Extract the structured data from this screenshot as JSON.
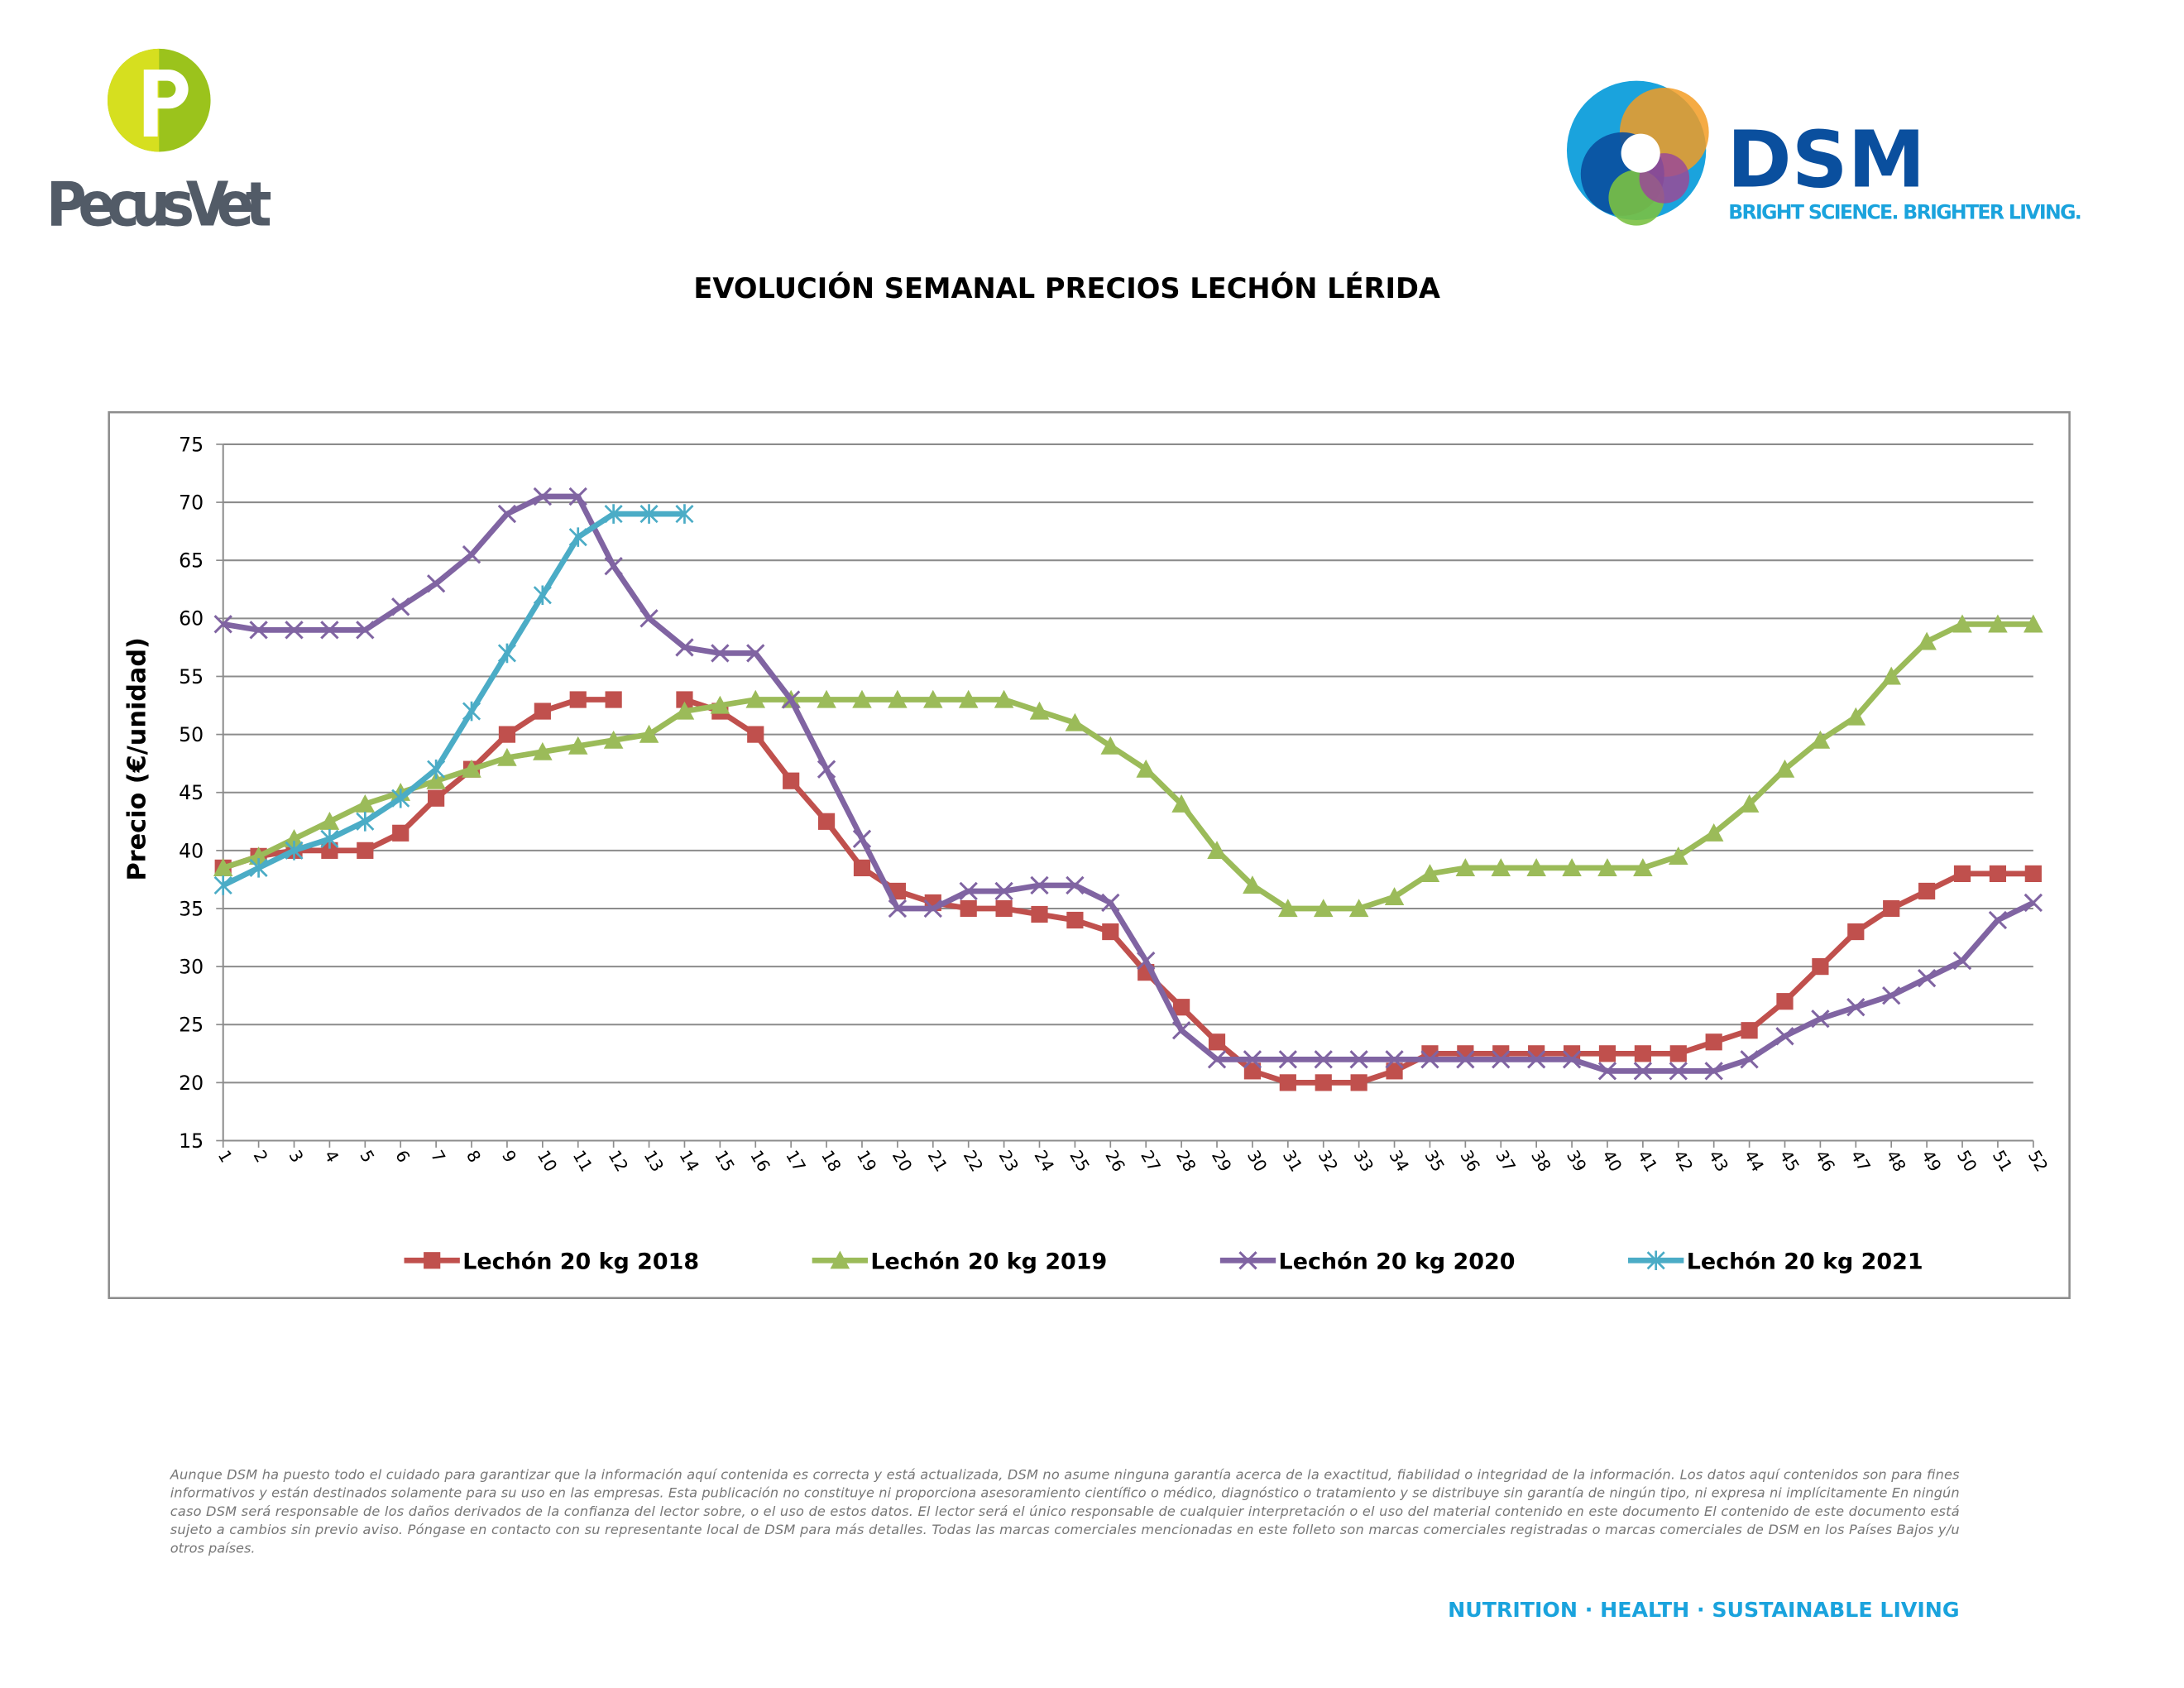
{
  "header": {
    "left_logo": "PecusVet",
    "right_logo": "DSM",
    "tagline": "BRIGHT SCIENCE. BRIGHTER LIVING."
  },
  "chart_data": {
    "type": "line",
    "title": "EVOLUCIÓN SEMANAL PRECIOS LECHÓN LÉRIDA",
    "ylabel": "Precio (€/unidad)",
    "categories": [
      "1",
      "2",
      "3",
      "4",
      "5",
      "6",
      "7",
      "8",
      "9",
      "10",
      "11",
      "12",
      "13",
      "14",
      "15",
      "16",
      "17",
      "18",
      "19",
      "20",
      "21",
      "22",
      "23",
      "24",
      "25",
      "26",
      "27",
      "28",
      "29",
      "30",
      "31",
      "32",
      "33",
      "34",
      "35",
      "36",
      "37",
      "38",
      "39",
      "40",
      "41",
      "42",
      "43",
      "44",
      "45",
      "46",
      "47",
      "48",
      "49",
      "50",
      "51",
      "52"
    ],
    "ylim": [
      15,
      75
    ],
    "yticks": [
      15,
      20,
      25,
      30,
      35,
      40,
      45,
      50,
      55,
      60,
      65,
      70,
      75
    ],
    "grid": true,
    "legend": "bottom",
    "series": [
      {
        "name": "Lechón 20 kg 2018",
        "color": "#c0504d",
        "marker": "square",
        "values": [
          38.5,
          39.5,
          40,
          40,
          40,
          41.5,
          44.5,
          47,
          50,
          52,
          53,
          53,
          null,
          53,
          52,
          50,
          46,
          42.5,
          38.5,
          36.5,
          35.5,
          35,
          35,
          34.5,
          34,
          33,
          29.5,
          26.5,
          23.5,
          21,
          20,
          20,
          20,
          21,
          22.5,
          22.5,
          22.5,
          22.5,
          22.5,
          22.5,
          22.5,
          22.5,
          23.5,
          24.5,
          27,
          30,
          33,
          35,
          36.5,
          38,
          38,
          38
        ]
      },
      {
        "name": "Lechón 20 kg 2019",
        "color": "#9bbb59",
        "marker": "triangle",
        "values": [
          38.5,
          39.5,
          41,
          42.5,
          44,
          45,
          46,
          47,
          48,
          48.5,
          49,
          49.5,
          50,
          52,
          52.5,
          53,
          53,
          53,
          53,
          53,
          53,
          53,
          53,
          52,
          51,
          49,
          47,
          44,
          40,
          37,
          35,
          35,
          35,
          36,
          38,
          38.5,
          38.5,
          38.5,
          38.5,
          38.5,
          38.5,
          39.5,
          41.5,
          44,
          47,
          49.5,
          51.5,
          55,
          58,
          59.5,
          59.5,
          59.5
        ]
      },
      {
        "name": "Lechón 20 kg 2020",
        "color": "#8064a2",
        "marker": "x",
        "values": [
          59.5,
          59,
          59,
          59,
          59,
          61,
          63,
          65.5,
          69,
          70.5,
          70.5,
          64.5,
          60,
          57.5,
          57,
          57,
          53,
          47,
          41,
          35,
          35,
          36.5,
          36.5,
          37,
          37,
          35.5,
          30.5,
          24.5,
          22,
          22,
          22,
          22,
          22,
          22,
          22,
          22,
          22,
          22,
          22,
          21,
          21,
          21,
          21,
          22,
          24,
          25.5,
          26.5,
          27.5,
          29,
          30.5,
          34,
          35.5
        ]
      },
      {
        "name": "Lechón 20 kg 2021",
        "color": "#4bacc6",
        "marker": "asterisk",
        "values": [
          37,
          38.5,
          40,
          41,
          42.5,
          44.5,
          47,
          52,
          57,
          62,
          67,
          69,
          69,
          69,
          null,
          null,
          null,
          null,
          null,
          null,
          null,
          null,
          null,
          null,
          null,
          null,
          null,
          null,
          null,
          null,
          null,
          null,
          null,
          null,
          null,
          null,
          null,
          null,
          null,
          null,
          null,
          null,
          null,
          null,
          null,
          null,
          null,
          null,
          null,
          null,
          null,
          null
        ]
      }
    ]
  },
  "footer": {
    "disclaimer": [
      "Aunque DSM ha puesto todo el cuidado para garantizar que la información aquí contenida es correcta y está actualizada, DSM no asume ninguna garantía acerca de la exactitud, fiabilidad o integridad de la información. Los datos aquí contenidos son para fines",
      "informativos y están destinados solamente para su uso en las empresas. Esta publicación no constituye ni proporciona asesoramiento científico o médico, diagnóstico o tratamiento y se distribuye sin garantía de ningún tipo, ni expresa ni implícitamente En ningún",
      "caso DSM será responsable de los daños derivados de la confianza del lector sobre, o el uso de estos datos. El lector será el único responsable de cualquier interpretación o el uso del material contenido en este documento El contenido de este documento está",
      "sujeto a cambios sin previo aviso. Póngase en contacto con su representante local de DSM para más detalles. Todas las marcas comerciales mencionadas en este folleto son marcas comerciales registradas o marcas comerciales de DSM en los Países Bajos y/u",
      "otros países."
    ],
    "slogan": "NUTRITION · HEALTH · SUSTAINABLE LIVING"
  }
}
